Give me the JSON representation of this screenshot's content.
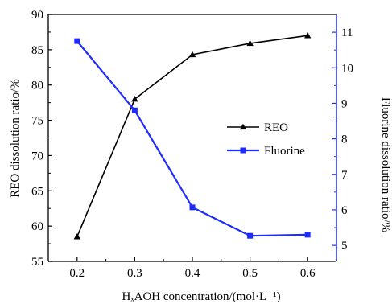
{
  "chart_data": {
    "type": "line",
    "x": [
      0.2,
      0.3,
      0.4,
      0.5,
      0.6
    ],
    "xlim": [
      0.15,
      0.65
    ],
    "x_ticks": [
      "0.2",
      "0.3",
      "0.4",
      "0.5",
      "0.6"
    ],
    "xlabel": "HₓAOH concentration/(mol·L⁻¹)",
    "y_left": {
      "label": "REO dissolution ratio/%",
      "lim": [
        55,
        90
      ],
      "ticks": [
        "55",
        "60",
        "65",
        "70",
        "75",
        "80",
        "85",
        "90"
      ],
      "color": "#000000"
    },
    "y_right": {
      "label": "Fluorine dissolution ratio/%",
      "lim": [
        4.55,
        11.5
      ],
      "ticks": [
        "5",
        "6",
        "7",
        "8",
        "9",
        "10",
        "11"
      ],
      "color": "#1f2cff"
    },
    "series": [
      {
        "name": "REO",
        "axis": "left",
        "marker": "triangle",
        "color": "#000000",
        "values": [
          58.5,
          78.0,
          84.3,
          85.9,
          87.0
        ]
      },
      {
        "name": "Fluorine",
        "axis": "right",
        "marker": "square",
        "color": "#1f2cff",
        "values": [
          10.75,
          8.8,
          6.07,
          5.27,
          5.3
        ]
      }
    ],
    "legend": {
      "placement": "center-right"
    }
  }
}
